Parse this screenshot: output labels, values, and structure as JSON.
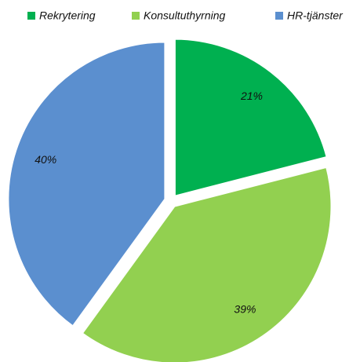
{
  "chart_data": {
    "type": "pie",
    "categories": [
      "Rekrytering",
      "Konsultuthyrning",
      "HR-tjänster"
    ],
    "values": [
      21,
      39,
      40
    ],
    "value_labels": [
      "21%",
      "39%",
      "40%"
    ],
    "colors": [
      "#00b050",
      "#92d050",
      "#5b8fcf"
    ],
    "legend": "top"
  }
}
